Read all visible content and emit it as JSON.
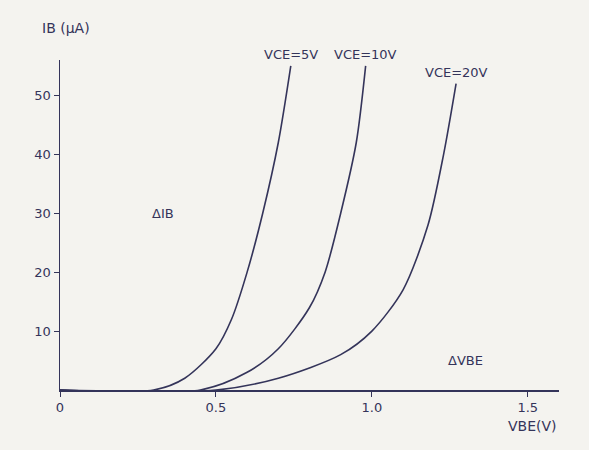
{
  "chart_data": {
    "type": "line",
    "x_label": "VBE(V)",
    "y_label": "IB (µA)",
    "xlim": [
      0,
      1.6
    ],
    "ylim": [
      0,
      56
    ],
    "xticks": [
      0,
      {
        "value": 0.5,
        "label": "0.5"
      },
      {
        "value": 1.0,
        "label": "1.0"
      },
      {
        "value": 1.5,
        "label": "1.5"
      }
    ],
    "yticks": [
      10,
      20,
      30,
      40,
      50
    ],
    "grid": false,
    "series": [
      {
        "name": "VCE=5V",
        "color": "#34345a",
        "x": [
          0,
          0.3,
          0.4,
          0.5,
          0.55,
          0.6,
          0.65,
          0.7,
          0.74
        ],
        "values": [
          0,
          0,
          2,
          7,
          12,
          20,
          30,
          42,
          55
        ]
      },
      {
        "name": "VCE=10V",
        "color": "#34345a",
        "x": [
          0,
          0.45,
          0.6,
          0.7,
          0.8,
          0.85,
          0.9,
          0.95,
          0.98
        ],
        "values": [
          0,
          0,
          3,
          7,
          14,
          20,
          30,
          42,
          55
        ]
      },
      {
        "name": "VCE=20V",
        "color": "#34345a",
        "x": [
          0,
          0.5,
          0.7,
          0.9,
          1.0,
          1.1,
          1.18,
          1.23,
          1.27
        ],
        "values": [
          0,
          0,
          2,
          6,
          10,
          17,
          28,
          40,
          52
        ]
      }
    ],
    "annotations": [
      {
        "text": "ΔIB",
        "x": 0.33,
        "y": 30
      },
      {
        "text": "ΔVBE",
        "x": 1.3,
        "y": 5
      }
    ]
  }
}
